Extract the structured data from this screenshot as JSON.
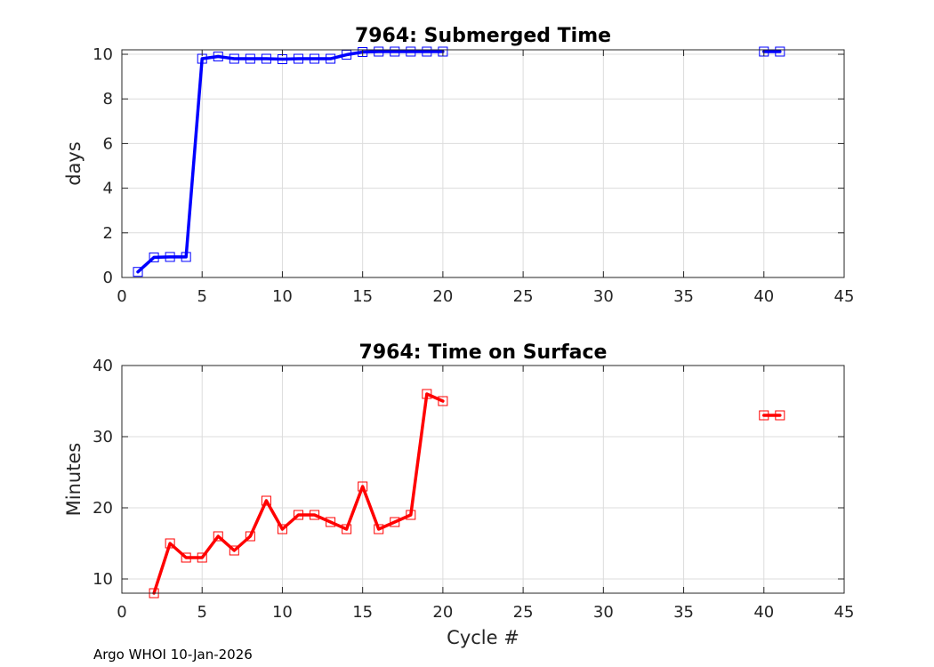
{
  "chart_data": [
    {
      "type": "line",
      "title": "7964: Submerged Time",
      "xlabel": "",
      "ylabel": "days",
      "xlim": [
        0,
        45
      ],
      "ylim": [
        0,
        10.2
      ],
      "xticks": [
        0,
        5,
        10,
        15,
        20,
        25,
        30,
        35,
        40,
        45
      ],
      "yticks": [
        0,
        2,
        4,
        6,
        8,
        10
      ],
      "grid": true,
      "color": "#0000ff",
      "marker": "square",
      "series": [
        {
          "name": "submerged_time",
          "segments": [
            {
              "x": [
                1,
                2,
                3,
                4,
                5,
                6,
                7,
                8,
                9,
                10,
                11,
                12,
                13,
                14,
                15,
                16,
                17,
                18,
                19,
                20
              ],
              "y": [
                0.25,
                0.9,
                0.92,
                0.92,
                9.8,
                9.9,
                9.8,
                9.8,
                9.8,
                9.78,
                9.8,
                9.8,
                9.8,
                9.98,
                10.1,
                10.12,
                10.12,
                10.12,
                10.12,
                10.12
              ]
            },
            {
              "x": [
                40,
                41
              ],
              "y": [
                10.12,
                10.12
              ]
            }
          ]
        }
      ]
    },
    {
      "type": "line",
      "title": "7964: Time on Surface",
      "xlabel": "Cycle #",
      "ylabel": "Minutes",
      "xlim": [
        0,
        45
      ],
      "ylim": [
        8,
        40
      ],
      "xticks": [
        0,
        5,
        10,
        15,
        20,
        25,
        30,
        35,
        40,
        45
      ],
      "yticks": [
        10,
        20,
        30,
        40
      ],
      "grid": true,
      "color": "#ff0000",
      "marker": "square",
      "series": [
        {
          "name": "surface_time",
          "segments": [
            {
              "x": [
                2,
                3,
                4,
                5,
                6,
                7,
                8,
                9,
                10,
                11,
                12,
                13,
                14,
                15,
                16,
                17,
                18,
                19,
                20
              ],
              "y": [
                8,
                15,
                13,
                13,
                16,
                14,
                16,
                21,
                17,
                19,
                19,
                18,
                17,
                23,
                17,
                18,
                19,
                36,
                35
              ]
            },
            {
              "x": [
                40,
                41
              ],
              "y": [
                33,
                33
              ]
            }
          ]
        }
      ]
    }
  ],
  "footer": "Argo WHOI 10-Jan-2026"
}
